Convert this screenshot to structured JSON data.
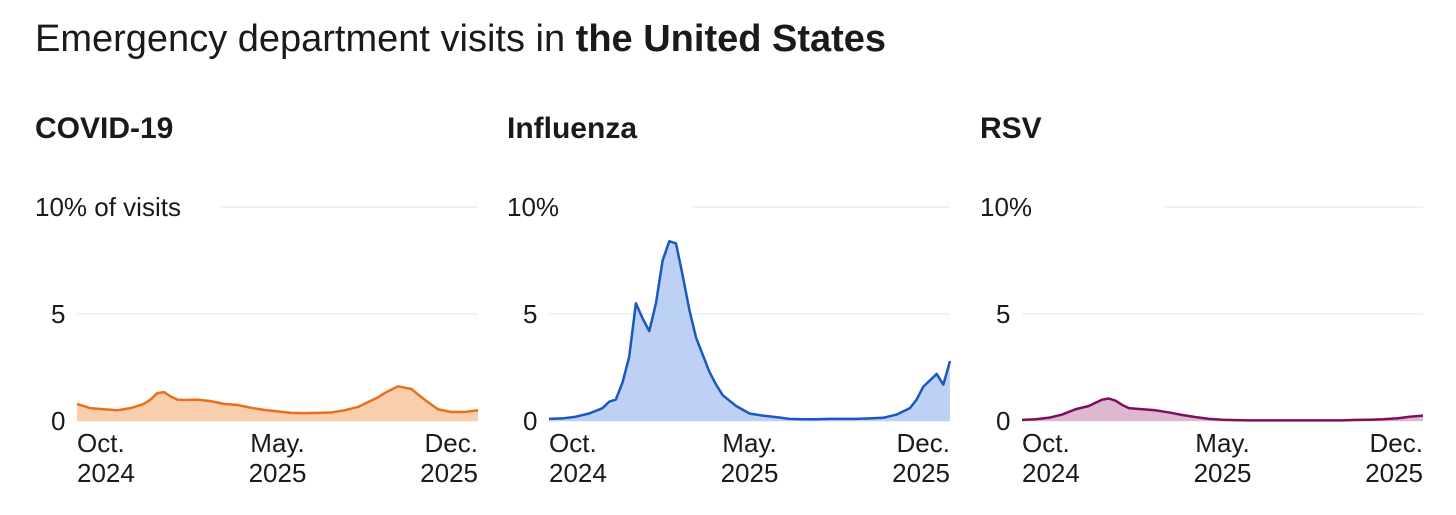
{
  "title": {
    "prefix": "Emergency department visits in ",
    "bold": "the United States"
  },
  "chart_data": [
    {
      "type": "area",
      "title": "COVID-19",
      "ylabel": "% of visits",
      "ylim": [
        0,
        10
      ],
      "y_ticks": [
        "0",
        "5",
        "10% of visits"
      ],
      "x_tick_labels": [
        [
          "Oct.",
          "2024"
        ],
        [
          "May.",
          "2025"
        ],
        [
          "Dec.",
          "2025"
        ]
      ],
      "x_ticks": [
        0,
        30,
        60
      ],
      "grid": true,
      "color": "#e8701a",
      "fill": "#f8cba8",
      "series": [
        {
          "x": [
            0,
            2,
            4,
            6,
            8,
            10,
            11,
            12,
            13,
            14,
            15,
            16,
            18,
            20,
            22,
            24,
            26,
            28,
            30,
            32,
            34,
            36,
            38,
            40,
            42,
            43,
            44,
            45,
            46,
            48,
            50,
            52,
            54,
            56,
            58,
            60
          ],
          "values": [
            0.8,
            0.6,
            0.55,
            0.5,
            0.6,
            0.8,
            1.0,
            1.3,
            1.35,
            1.15,
            1.0,
            0.98,
            1.0,
            0.93,
            0.8,
            0.75,
            0.62,
            0.52,
            0.45,
            0.38,
            0.37,
            0.38,
            0.4,
            0.5,
            0.65,
            0.8,
            0.95,
            1.1,
            1.3,
            1.62,
            1.5,
            1.0,
            0.55,
            0.42,
            0.42,
            0.5
          ]
        }
      ]
    },
    {
      "type": "area",
      "title": "Influenza",
      "ylim": [
        0,
        10
      ],
      "y_ticks": [
        "0",
        "5",
        "10%"
      ],
      "x_tick_labels": [
        [
          "Oct.",
          "2024"
        ],
        [
          "May.",
          "2025"
        ],
        [
          "Dec.",
          "2025"
        ]
      ],
      "x_ticks": [
        0,
        30,
        60
      ],
      "grid": true,
      "color": "#1a56c4",
      "fill": "#b8cff2",
      "series": [
        {
          "x": [
            0,
            2,
            4,
            6,
            8,
            9,
            10,
            11,
            12,
            13,
            14,
            15,
            16,
            17,
            18,
            19,
            20,
            21,
            22,
            23,
            24,
            25,
            26,
            28,
            30,
            32,
            34,
            36,
            38,
            40,
            42,
            44,
            46,
            48,
            50,
            52,
            54,
            55,
            56,
            57,
            58,
            59,
            60
          ],
          "values": [
            0.1,
            0.12,
            0.2,
            0.35,
            0.6,
            0.9,
            1.0,
            1.8,
            3.0,
            5.5,
            4.8,
            4.2,
            5.5,
            7.5,
            8.4,
            8.3,
            6.8,
            5.2,
            3.9,
            3.1,
            2.3,
            1.7,
            1.2,
            0.7,
            0.35,
            0.25,
            0.18,
            0.1,
            0.08,
            0.08,
            0.1,
            0.1,
            0.1,
            0.12,
            0.15,
            0.3,
            0.6,
            1.0,
            1.6,
            1.9,
            2.2,
            1.7,
            2.8
          ]
        }
      ]
    },
    {
      "type": "area",
      "title": "RSV",
      "ylim": [
        0,
        10
      ],
      "y_ticks": [
        "0",
        "5",
        "10%"
      ],
      "x_tick_labels": [
        [
          "Oct.",
          "2024"
        ],
        [
          "May.",
          "2025"
        ],
        [
          "Dec.",
          "2025"
        ]
      ],
      "x_ticks": [
        0,
        30,
        60
      ],
      "grid": true,
      "color": "#7d0f5e",
      "fill": "#dcb3cf",
      "series": [
        {
          "x": [
            0,
            2,
            4,
            6,
            8,
            10,
            11,
            12,
            13,
            14,
            15,
            16,
            18,
            20,
            22,
            24,
            26,
            28,
            30,
            32,
            34,
            36,
            40,
            44,
            48,
            50,
            52,
            54,
            56,
            58,
            60
          ],
          "values": [
            0.05,
            0.08,
            0.15,
            0.3,
            0.55,
            0.7,
            0.85,
            1.0,
            1.05,
            0.95,
            0.75,
            0.6,
            0.55,
            0.5,
            0.4,
            0.28,
            0.18,
            0.1,
            0.06,
            0.04,
            0.03,
            0.03,
            0.03,
            0.03,
            0.03,
            0.05,
            0.06,
            0.08,
            0.12,
            0.2,
            0.25
          ]
        }
      ]
    }
  ]
}
